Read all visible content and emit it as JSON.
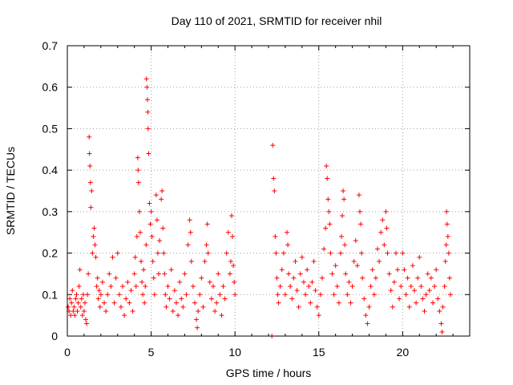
{
  "chart_data": {
    "type": "scatter",
    "title": "Day 110 of 2021, SRMTID for receiver nhil",
    "xlabel": "GPS time / hours",
    "ylabel": "SRMTID / TECUs",
    "xlim": [
      0,
      24
    ],
    "ylim": [
      0,
      0.7
    ],
    "xticks": [
      0,
      5,
      10,
      15,
      20
    ],
    "xtick_labels": [
      "0",
      "5",
      "10",
      "15",
      "20"
    ],
    "yticks": [
      0,
      0.1,
      0.2,
      0.3,
      0.4,
      0.5,
      0.6,
      0.7
    ],
    "ytick_labels": [
      "0",
      "0.1",
      "0.2",
      "0.3",
      "0.4",
      "0.5",
      "0.6",
      "0.7"
    ],
    "grid": true,
    "legend": "none",
    "marker": "plus",
    "color": "#ff0000",
    "data_gap_hours": [
      10.1,
      12.2
    ],
    "series": [
      {
        "name": "SRMTID",
        "points": [
          [
            0.05,
            0.07
          ],
          [
            0.1,
            0.06
          ],
          [
            0.15,
            0.09
          ],
          [
            0.2,
            0.05
          ],
          [
            0.25,
            0.08
          ],
          [
            0.3,
            0.11
          ],
          [
            0.35,
            0.06
          ],
          [
            0.4,
            0.07
          ],
          [
            0.45,
            0.05
          ],
          [
            0.5,
            0.09
          ],
          [
            0.55,
            0.1
          ],
          [
            0.6,
            0.06
          ],
          [
            0.65,
            0.08
          ],
          [
            0.7,
            0.12
          ],
          [
            0.75,
            0.16
          ],
          [
            0.8,
            0.07
          ],
          [
            0.85,
            0.09
          ],
          [
            0.9,
            0.05
          ],
          [
            0.95,
            0.1
          ],
          [
            1.0,
            0.06
          ],
          [
            1.05,
            0.08
          ],
          [
            1.1,
            0.04
          ],
          [
            1.15,
            0.03
          ],
          [
            1.2,
            0.1
          ],
          [
            1.25,
            0.15
          ],
          [
            1.3,
            0.48
          ],
          [
            1.32,
            0.44
          ],
          [
            1.35,
            0.41
          ],
          [
            1.38,
            0.37
          ],
          [
            1.4,
            0.31
          ],
          [
            1.45,
            0.35
          ],
          [
            1.5,
            0.2
          ],
          [
            1.55,
            0.24
          ],
          [
            1.6,
            0.26
          ],
          [
            1.65,
            0.22
          ],
          [
            1.7,
            0.19
          ],
          [
            1.75,
            0.12
          ],
          [
            1.8,
            0.14
          ],
          [
            1.85,
            0.09
          ],
          [
            1.9,
            0.11
          ],
          [
            1.95,
            0.07
          ],
          [
            2.0,
            0.1
          ],
          [
            2.1,
            0.13
          ],
          [
            2.2,
            0.08
          ],
          [
            2.3,
            0.06
          ],
          [
            2.4,
            0.1
          ],
          [
            2.5,
            0.15
          ],
          [
            2.6,
            0.12
          ],
          [
            2.7,
            0.19
          ],
          [
            2.8,
            0.08
          ],
          [
            2.9,
            0.14
          ],
          [
            3.0,
            0.2
          ],
          [
            3.1,
            0.1
          ],
          [
            3.2,
            0.07
          ],
          [
            3.3,
            0.12
          ],
          [
            3.4,
            0.05
          ],
          [
            3.5,
            0.09
          ],
          [
            3.6,
            0.13
          ],
          [
            3.7,
            0.08
          ],
          [
            3.8,
            0.11
          ],
          [
            3.9,
            0.06
          ],
          [
            4.0,
            0.15
          ],
          [
            4.05,
            0.19
          ],
          [
            4.1,
            0.12
          ],
          [
            4.15,
            0.24
          ],
          [
            4.2,
            0.43
          ],
          [
            4.22,
            0.4
          ],
          [
            4.25,
            0.37
          ],
          [
            4.3,
            0.3
          ],
          [
            4.35,
            0.25
          ],
          [
            4.4,
            0.18
          ],
          [
            4.45,
            0.13
          ],
          [
            4.5,
            0.1
          ],
          [
            4.55,
            0.16
          ],
          [
            4.6,
            0.08
          ],
          [
            4.65,
            0.12
          ],
          [
            4.7,
            0.22
          ],
          [
            4.72,
            0.62
          ],
          [
            4.75,
            0.6
          ],
          [
            4.78,
            0.57
          ],
          [
            4.8,
            0.54
          ],
          [
            4.82,
            0.5
          ],
          [
            4.85,
            0.44
          ],
          [
            4.9,
            0.32
          ],
          [
            4.95,
            0.27
          ],
          [
            5.0,
            0.3
          ],
          [
            5.05,
            0.24
          ],
          [
            5.1,
            0.18
          ],
          [
            5.15,
            0.14
          ],
          [
            5.2,
            0.1
          ],
          [
            5.3,
            0.34
          ],
          [
            5.35,
            0.28
          ],
          [
            5.4,
            0.2
          ],
          [
            5.45,
            0.15
          ],
          [
            5.5,
            0.23
          ],
          [
            5.6,
            0.33
          ],
          [
            5.65,
            0.35
          ],
          [
            5.7,
            0.26
          ],
          [
            5.75,
            0.2
          ],
          [
            5.8,
            0.15
          ],
          [
            5.85,
            0.1
          ],
          [
            5.9,
            0.07
          ],
          [
            6.0,
            0.12
          ],
          [
            6.1,
            0.09
          ],
          [
            6.2,
            0.16
          ],
          [
            6.3,
            0.06
          ],
          [
            6.4,
            0.11
          ],
          [
            6.5,
            0.08
          ],
          [
            6.6,
            0.05
          ],
          [
            6.7,
            0.13
          ],
          [
            6.8,
            0.09
          ],
          [
            6.9,
            0.07
          ],
          [
            7.0,
            0.15
          ],
          [
            7.1,
            0.1
          ],
          [
            7.2,
            0.22
          ],
          [
            7.3,
            0.28
          ],
          [
            7.35,
            0.25
          ],
          [
            7.4,
            0.18
          ],
          [
            7.5,
            0.12
          ],
          [
            7.6,
            0.08
          ],
          [
            7.7,
            0.04
          ],
          [
            7.75,
            0.02
          ],
          [
            7.8,
            0.06
          ],
          [
            7.9,
            0.1
          ],
          [
            8.0,
            0.14
          ],
          [
            8.1,
            0.07
          ],
          [
            8.2,
            0.18
          ],
          [
            8.3,
            0.22
          ],
          [
            8.35,
            0.27
          ],
          [
            8.4,
            0.2
          ],
          [
            8.5,
            0.13
          ],
          [
            8.6,
            0.09
          ],
          [
            8.7,
            0.12
          ],
          [
            8.8,
            0.06
          ],
          [
            8.9,
            0.08
          ],
          [
            9.0,
            0.15
          ],
          [
            9.1,
            0.1
          ],
          [
            9.2,
            0.05
          ],
          [
            9.3,
            0.12
          ],
          [
            9.4,
            0.09
          ],
          [
            9.5,
            0.2
          ],
          [
            9.6,
            0.25
          ],
          [
            9.7,
            0.15
          ],
          [
            9.75,
            0.18
          ],
          [
            9.8,
            0.29
          ],
          [
            9.85,
            0.24
          ],
          [
            9.9,
            0.17
          ],
          [
            9.95,
            0.13
          ],
          [
            10.0,
            0.1
          ],
          [
            12.2,
            0.0
          ],
          [
            12.25,
            0.46
          ],
          [
            12.3,
            0.38
          ],
          [
            12.35,
            0.35
          ],
          [
            12.4,
            0.24
          ],
          [
            12.45,
            0.2
          ],
          [
            12.5,
            0.14
          ],
          [
            12.55,
            0.1
          ],
          [
            12.6,
            0.08
          ],
          [
            12.7,
            0.12
          ],
          [
            12.8,
            0.16
          ],
          [
            12.9,
            0.2
          ],
          [
            13.0,
            0.1
          ],
          [
            13.1,
            0.25
          ],
          [
            13.15,
            0.22
          ],
          [
            13.2,
            0.15
          ],
          [
            13.3,
            0.12
          ],
          [
            13.4,
            0.09
          ],
          [
            13.5,
            0.14
          ],
          [
            13.6,
            0.18
          ],
          [
            13.7,
            0.11
          ],
          [
            13.8,
            0.07
          ],
          [
            13.9,
            0.15
          ],
          [
            14.0,
            0.19
          ],
          [
            14.1,
            0.13
          ],
          [
            14.2,
            0.1
          ],
          [
            14.3,
            0.16
          ],
          [
            14.4,
            0.12
          ],
          [
            14.5,
            0.08
          ],
          [
            14.6,
            0.13
          ],
          [
            14.7,
            0.18
          ],
          [
            14.8,
            0.11
          ],
          [
            14.9,
            0.07
          ],
          [
            15.0,
            0.05
          ],
          [
            15.1,
            0.1
          ],
          [
            15.2,
            0.14
          ],
          [
            15.3,
            0.21
          ],
          [
            15.4,
            0.26
          ],
          [
            15.45,
            0.41
          ],
          [
            15.5,
            0.38
          ],
          [
            15.55,
            0.33
          ],
          [
            15.6,
            0.3
          ],
          [
            15.65,
            0.27
          ],
          [
            15.7,
            0.2
          ],
          [
            15.8,
            0.15
          ],
          [
            15.9,
            0.1
          ],
          [
            16.0,
            0.17
          ],
          [
            16.1,
            0.12
          ],
          [
            16.2,
            0.08
          ],
          [
            16.3,
            0.2
          ],
          [
            16.35,
            0.24
          ],
          [
            16.4,
            0.29
          ],
          [
            16.45,
            0.35
          ],
          [
            16.5,
            0.33
          ],
          [
            16.55,
            0.22
          ],
          [
            16.6,
            0.15
          ],
          [
            16.7,
            0.1
          ],
          [
            16.8,
            0.13
          ],
          [
            16.9,
            0.08
          ],
          [
            17.0,
            0.12
          ],
          [
            17.1,
            0.18
          ],
          [
            17.2,
            0.23
          ],
          [
            17.3,
            0.17
          ],
          [
            17.4,
            0.34
          ],
          [
            17.45,
            0.3
          ],
          [
            17.5,
            0.27
          ],
          [
            17.55,
            0.2
          ],
          [
            17.6,
            0.14
          ],
          [
            17.7,
            0.09
          ],
          [
            17.8,
            0.05
          ],
          [
            17.9,
            0.03
          ],
          [
            18.0,
            0.07
          ],
          [
            18.1,
            0.12
          ],
          [
            18.2,
            0.16
          ],
          [
            18.3,
            0.1
          ],
          [
            18.4,
            0.14
          ],
          [
            18.5,
            0.21
          ],
          [
            18.6,
            0.18
          ],
          [
            18.7,
            0.25
          ],
          [
            18.8,
            0.28
          ],
          [
            18.9,
            0.22
          ],
          [
            19.0,
            0.3
          ],
          [
            19.05,
            0.26
          ],
          [
            19.1,
            0.2
          ],
          [
            19.2,
            0.15
          ],
          [
            19.3,
            0.11
          ],
          [
            19.4,
            0.07
          ],
          [
            19.5,
            0.13
          ],
          [
            19.6,
            0.2
          ],
          [
            19.7,
            0.16
          ],
          [
            19.8,
            0.09
          ],
          [
            19.9,
            0.12
          ],
          [
            20.0,
            0.2
          ],
          [
            20.1,
            0.16
          ],
          [
            20.2,
            0.1
          ],
          [
            20.3,
            0.14
          ],
          [
            20.4,
            0.07
          ],
          [
            20.5,
            0.12
          ],
          [
            20.6,
            0.17
          ],
          [
            20.7,
            0.11
          ],
          [
            20.8,
            0.08
          ],
          [
            20.9,
            0.14
          ],
          [
            21.0,
            0.19
          ],
          [
            21.1,
            0.12
          ],
          [
            21.2,
            0.09
          ],
          [
            21.3,
            0.06
          ],
          [
            21.4,
            0.1
          ],
          [
            21.5,
            0.15
          ],
          [
            21.6,
            0.11
          ],
          [
            21.7,
            0.14
          ],
          [
            21.8,
            0.08
          ],
          [
            21.9,
            0.12
          ],
          [
            22.0,
            0.16
          ],
          [
            22.1,
            0.09
          ],
          [
            22.2,
            0.06
          ],
          [
            22.3,
            0.03
          ],
          [
            22.35,
            0.01
          ],
          [
            22.4,
            0.07
          ],
          [
            22.5,
            0.12
          ],
          [
            22.55,
            0.18
          ],
          [
            22.6,
            0.22
          ],
          [
            22.62,
            0.3
          ],
          [
            22.65,
            0.27
          ],
          [
            22.7,
            0.24
          ],
          [
            22.75,
            0.2
          ],
          [
            22.8,
            0.14
          ],
          [
            22.85,
            0.1
          ]
        ]
      }
    ]
  }
}
